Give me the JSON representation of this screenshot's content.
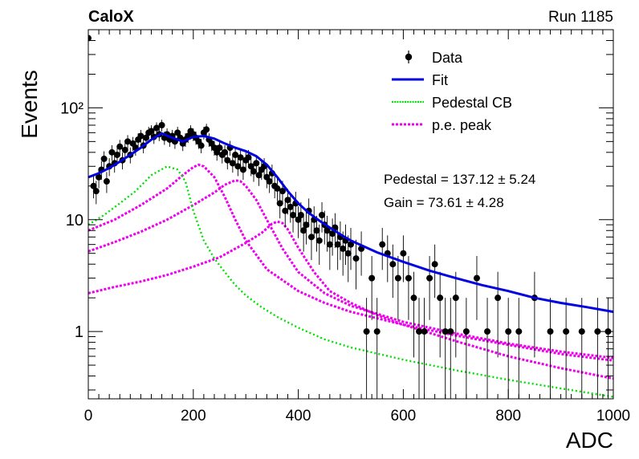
{
  "header": {
    "experiment": "CaloX",
    "run": "Run 1185"
  },
  "fit_results": {
    "pedestal": "Pedestal = 137.12 ± 5.24",
    "gain": "Gain = 73.61 ± 4.28"
  },
  "chart_data": {
    "type": "scatter",
    "title": "",
    "xlabel": "ADC",
    "ylabel": "Events",
    "xlim": [
      0,
      1000
    ],
    "ylim": [
      0.25,
      500
    ],
    "log_y": true,
    "grid": false,
    "legend_position": "top-right",
    "x_ticks": [
      "0",
      "200",
      "400",
      "600",
      "800",
      "1000"
    ],
    "y_ticks": [
      {
        "value": 1,
        "label": "1"
      },
      {
        "value": 10,
        "label": "10"
      },
      {
        "value": 100,
        "label": "10²"
      }
    ],
    "legend": [
      "Data",
      "Fit",
      "Pedestal CB",
      "p.e. peak"
    ],
    "colors": {
      "data": "#000000",
      "fit": "#0000e0",
      "pedestal": "#00e000",
      "pe": "#ee00ee"
    },
    "fit_curve": {
      "x": [
        0,
        20,
        40,
        60,
        80,
        100,
        120,
        140,
        160,
        180,
        200,
        220,
        240,
        260,
        280,
        300,
        320,
        340,
        360,
        380,
        400,
        420,
        440,
        460,
        480,
        500,
        550,
        600,
        650,
        700,
        750,
        800,
        850,
        900,
        950,
        1000
      ],
      "y": [
        24,
        26,
        29,
        33,
        38,
        44,
        52,
        59,
        54,
        50,
        55,
        56,
        53,
        48,
        44,
        41,
        37,
        31,
        24,
        18,
        14,
        11.5,
        9.8,
        8.5,
        7.4,
        6.5,
        5.1,
        4.2,
        3.5,
        3.0,
        2.6,
        2.3,
        2.0,
        1.8,
        1.65,
        1.5
      ]
    },
    "pedestal_curve": {
      "x": [
        0,
        30,
        60,
        90,
        120,
        150,
        170,
        185,
        200,
        220,
        240,
        260,
        280,
        300,
        330,
        360,
        400,
        450,
        500,
        600,
        700,
        800,
        900,
        1000
      ],
      "y": [
        9,
        11,
        14,
        18,
        25,
        30,
        28,
        22,
        12,
        6.5,
        4.5,
        3.4,
        2.6,
        2.1,
        1.65,
        1.35,
        1.08,
        0.85,
        0.72,
        0.56,
        0.45,
        0.37,
        0.31,
        0.26
      ]
    },
    "pe_peaks": [
      {
        "x": [
          0,
          50,
          100,
          150,
          180,
          200,
          210,
          220,
          240,
          260,
          280,
          300,
          340,
          400,
          450,
          500,
          600,
          700,
          800,
          900,
          1000
        ],
        "y": [
          8,
          10,
          13.5,
          19,
          25,
          29.5,
          31,
          30,
          24,
          16,
          10,
          6.5,
          3.6,
          2.3,
          1.8,
          1.5,
          1.15,
          0.92,
          0.76,
          0.63,
          0.55
        ]
      },
      {
        "x": [
          0,
          50,
          100,
          150,
          200,
          240,
          260,
          280,
          290,
          300,
          320,
          340,
          370,
          400,
          450,
          500,
          600,
          700,
          800,
          900,
          1000
        ],
        "y": [
          5.2,
          6.3,
          7.8,
          10,
          13.5,
          17.5,
          20.5,
          22.5,
          22,
          20,
          15,
          10,
          5.5,
          3.4,
          2.2,
          1.7,
          1.22,
          0.96,
          0.78,
          0.66,
          0.58
        ]
      },
      {
        "x": [
          0,
          50,
          100,
          150,
          200,
          250,
          300,
          330,
          350,
          360,
          370,
          380,
          400,
          430,
          460,
          500,
          550,
          600,
          700,
          800,
          900,
          1000
        ],
        "y": [
          2.2,
          2.5,
          2.8,
          3.2,
          3.8,
          4.6,
          6.2,
          7.6,
          9.2,
          9.6,
          9.3,
          8.2,
          5.6,
          3.4,
          2.3,
          1.8,
          1.4,
          1.15,
          0.82,
          0.6,
          0.47,
          0.38
        ]
      }
    ],
    "data_points": {
      "x": [
        0,
        10,
        15,
        20,
        25,
        30,
        35,
        40,
        45,
        50,
        55,
        60,
        65,
        70,
        75,
        80,
        85,
        90,
        95,
        100,
        105,
        110,
        115,
        120,
        125,
        130,
        135,
        140,
        145,
        150,
        155,
        160,
        165,
        170,
        175,
        180,
        185,
        190,
        195,
        200,
        205,
        210,
        215,
        220,
        225,
        230,
        235,
        240,
        245,
        250,
        255,
        260,
        265,
        270,
        275,
        280,
        285,
        290,
        295,
        300,
        305,
        310,
        315,
        320,
        325,
        330,
        335,
        340,
        345,
        350,
        355,
        360,
        365,
        370,
        375,
        380,
        385,
        390,
        395,
        400,
        405,
        410,
        415,
        420,
        425,
        430,
        435,
        440,
        445,
        450,
        455,
        460,
        465,
        470,
        475,
        480,
        485,
        490,
        495,
        500,
        510,
        520,
        530,
        540,
        550,
        560,
        570,
        580,
        590,
        600,
        610,
        620,
        630,
        640,
        650,
        660,
        670,
        680,
        690,
        700,
        720,
        740,
        760,
        780,
        800,
        820,
        850,
        880,
        910,
        940,
        970,
        990
      ],
      "y": [
        420,
        20,
        18,
        24,
        28,
        35,
        22,
        30,
        40,
        32,
        38,
        45,
        34,
        42,
        50,
        38,
        48,
        44,
        52,
        56,
        46,
        54,
        60,
        62,
        55,
        66,
        58,
        70,
        54,
        58,
        52,
        56,
        50,
        60,
        54,
        48,
        52,
        56,
        62,
        58,
        54,
        50,
        46,
        60,
        64,
        52,
        48,
        44,
        40,
        44,
        38,
        40,
        34,
        44,
        32,
        38,
        30,
        36,
        28,
        34,
        36,
        30,
        27,
        32,
        25,
        28,
        30,
        24,
        22,
        26,
        20,
        19,
        14,
        18,
        12,
        15,
        13,
        11,
        14,
        10,
        11,
        8,
        9,
        12,
        7,
        10,
        8,
        6.5,
        11,
        9,
        8,
        6,
        7.5,
        8.5,
        6,
        7,
        5.5,
        6.5,
        5,
        6,
        4.5,
        5.5,
        1,
        3,
        1,
        6,
        5,
        4,
        3,
        5,
        3,
        2,
        1,
        1,
        3,
        4,
        2,
        1,
        1,
        2,
        1,
        3,
        1,
        2,
        1,
        1,
        2,
        1,
        1,
        1,
        1,
        1
      ]
    }
  }
}
